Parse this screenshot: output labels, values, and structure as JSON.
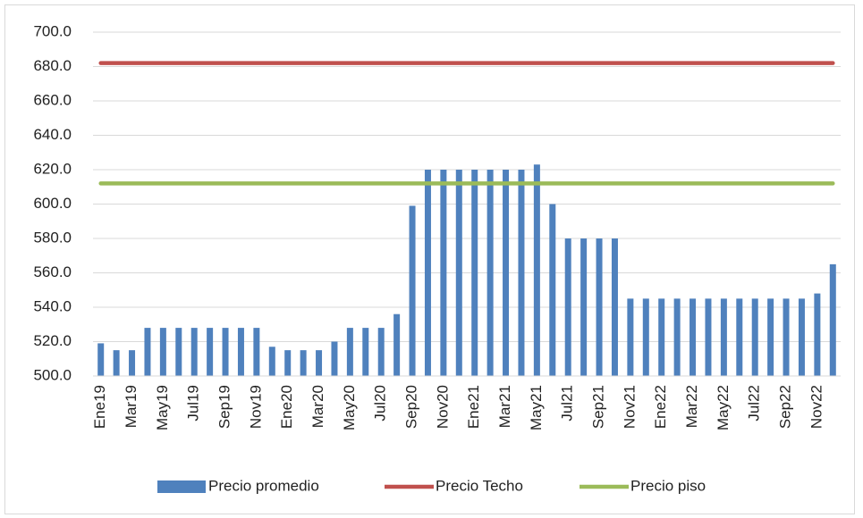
{
  "chart_data": {
    "type": "bar",
    "categories": [
      "Ene19",
      null,
      "Mar19",
      null,
      "May19",
      null,
      "Jul19",
      null,
      "Sep19",
      null,
      "Nov19",
      null,
      "Ene20",
      null,
      "Mar20",
      null,
      "May20",
      null,
      "Jul20",
      null,
      "Sep20",
      null,
      "Nov20",
      null,
      "Ene21",
      null,
      "Mar21",
      null,
      "May21",
      null,
      "Jul21",
      null,
      "Sep21",
      null,
      "Nov21",
      null,
      "Ene22",
      null,
      "Mar22",
      null,
      "May22",
      null,
      "Jul22",
      null,
      "Sep22",
      null,
      "Nov22",
      null
    ],
    "series": [
      {
        "name": "Precio promedio",
        "type": "bar",
        "color": "#4f81bd",
        "values": [
          519,
          515,
          515,
          528,
          528,
          528,
          528,
          528,
          528,
          528,
          528,
          517,
          515,
          515,
          515,
          520,
          528,
          528,
          528,
          536,
          599,
          620,
          620,
          620,
          620,
          620,
          620,
          620,
          623,
          600,
          580,
          580,
          580,
          580,
          545,
          545,
          545,
          545,
          545,
          545,
          545,
          545,
          545,
          545,
          545,
          545,
          548,
          565
        ]
      },
      {
        "name": "Precio Techo",
        "type": "line",
        "color": "#c0504d",
        "values": [
          682,
          682,
          682,
          682,
          682,
          682,
          682,
          682,
          682,
          682,
          682,
          682,
          682,
          682,
          682,
          682,
          682,
          682,
          682,
          682,
          682,
          682,
          682,
          682,
          682,
          682,
          682,
          682,
          682,
          682,
          682,
          682,
          682,
          682,
          682,
          682,
          682,
          682,
          682,
          682,
          682,
          682,
          682,
          682,
          682,
          682,
          682,
          682
        ]
      },
      {
        "name": "Precio piso",
        "type": "line",
        "color": "#9bbb59",
        "values": [
          612,
          612,
          612,
          612,
          612,
          612,
          612,
          612,
          612,
          612,
          612,
          612,
          612,
          612,
          612,
          612,
          612,
          612,
          612,
          612,
          612,
          612,
          612,
          612,
          612,
          612,
          612,
          612,
          612,
          612,
          612,
          612,
          612,
          612,
          612,
          612,
          612,
          612,
          612,
          612,
          612,
          612,
          612,
          612,
          612,
          612,
          612,
          612
        ]
      }
    ],
    "ylim": [
      500,
      700
    ],
    "yticks": [
      {
        "value": 500,
        "label": "500.0"
      },
      {
        "value": 520,
        "label": "520.0"
      },
      {
        "value": 540,
        "label": "540.0"
      },
      {
        "value": 560,
        "label": "560.0"
      },
      {
        "value": 580,
        "label": "580.0"
      },
      {
        "value": 600,
        "label": "600.0"
      },
      {
        "value": 620,
        "label": "620.0"
      },
      {
        "value": 640,
        "label": "640.0"
      },
      {
        "value": 660,
        "label": "660.0"
      },
      {
        "value": 680,
        "label": "680.0"
      },
      {
        "value": 700,
        "label": "700.0"
      }
    ],
    "grid": true,
    "legend": "bottom"
  }
}
